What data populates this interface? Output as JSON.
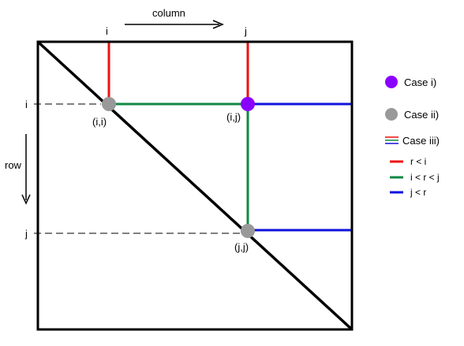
{
  "diagram": {
    "column_label": "column",
    "row_label": "row",
    "col_i": "i",
    "col_j": "j",
    "row_i": "i",
    "row_j": "j",
    "point_ii": "(i,i)",
    "point_ij": "(i,j)",
    "point_jj": "(j,j)"
  },
  "legend": {
    "case1": "Case i)",
    "case2": "Case ii)",
    "case3": "Case iii)",
    "r_lt_i": "r < i",
    "i_lt_r_lt_j": "i < r < j",
    "j_lt_r": "j < r"
  },
  "colors": {
    "red": "#ee1111",
    "green": "#118844",
    "blue": "#1111dd",
    "purple": "#8a00ff",
    "gray": "#999999",
    "black": "#000000"
  }
}
